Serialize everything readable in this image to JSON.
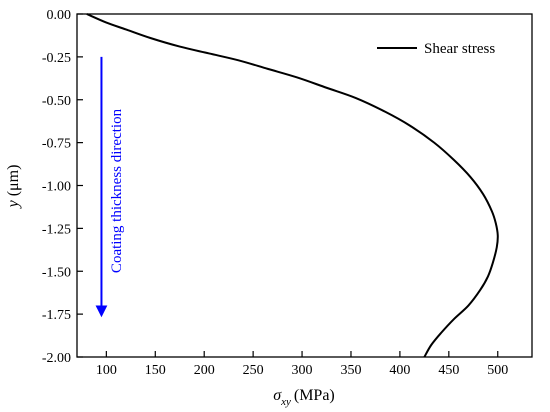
{
  "chart_data": {
    "type": "line",
    "title": "",
    "xlabel": {
      "symbol": "σ",
      "subscript": "xy",
      "unit": "(MPa)"
    },
    "ylabel": {
      "symbol": "y",
      "unit": "(μm)"
    },
    "xlim": [
      70,
      535
    ],
    "ylim": [
      -2.0,
      0.0
    ],
    "x_ticks": [
      100,
      150,
      200,
      250,
      300,
      350,
      400,
      450,
      500
    ],
    "x_tick_labels": [
      "100",
      "150",
      "200",
      "250",
      "300",
      "350",
      "400",
      "450",
      "500"
    ],
    "y_ticks": [
      0.0,
      -0.25,
      -0.5,
      -0.75,
      -1.0,
      -1.25,
      -1.5,
      -1.75,
      -2.0
    ],
    "y_tick_labels": [
      "0.00",
      "-0.25",
      "-0.50",
      "-0.75",
      "-1.00",
      "-1.25",
      "-1.50",
      "-1.75",
      "-2.00"
    ],
    "grid": false,
    "legend_position": "top-right",
    "series": [
      {
        "name": "Shear stress",
        "color": "#000000",
        "x": [
          80,
          100,
          120,
          145,
          175,
          205,
          235,
          265,
          295,
          325,
          355,
          385,
          410,
          435,
          455,
          472,
          485,
          494,
          498,
          500,
          499,
          495,
          490,
          482,
          470,
          455,
          442,
          432,
          425
        ],
        "y": [
          0.0,
          -0.05,
          -0.09,
          -0.14,
          -0.19,
          -0.23,
          -0.27,
          -0.32,
          -0.37,
          -0.43,
          -0.49,
          -0.57,
          -0.65,
          -0.75,
          -0.85,
          -0.95,
          -1.05,
          -1.15,
          -1.22,
          -1.29,
          -1.36,
          -1.45,
          -1.53,
          -1.61,
          -1.7,
          -1.78,
          -1.86,
          -1.93,
          -2.0
        ]
      }
    ],
    "annotation": {
      "text": "Coating thickness direction",
      "color": "#0000ff",
      "arrow_x": 95,
      "arrow_y_start": -0.25,
      "arrow_y_end": -1.78
    }
  }
}
